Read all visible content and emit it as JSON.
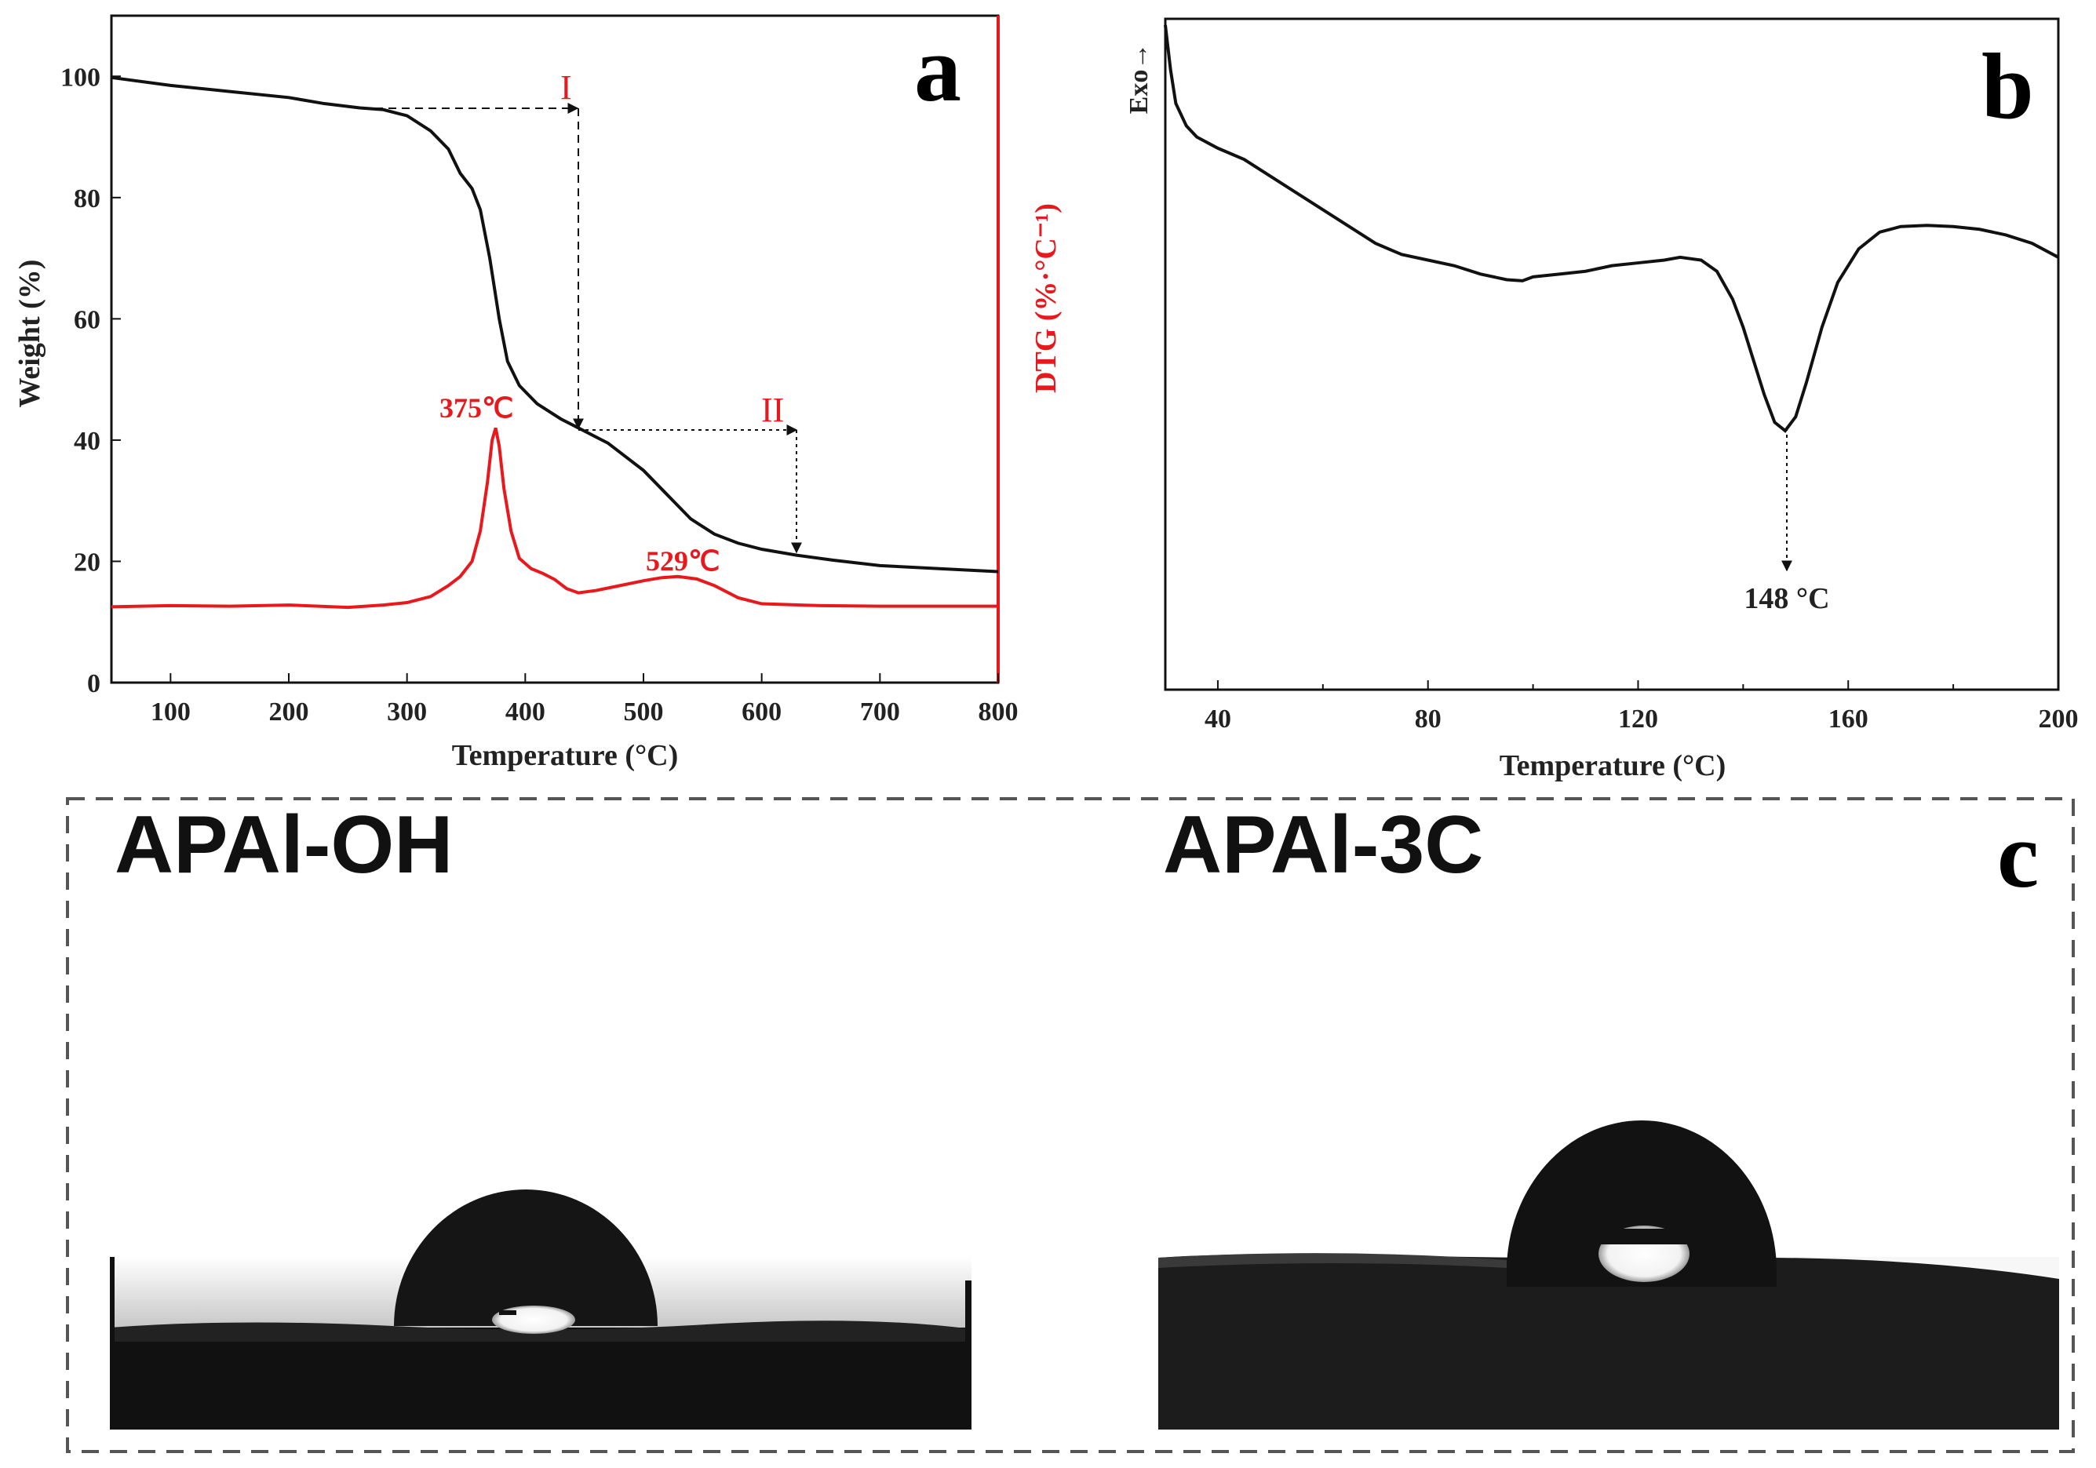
{
  "colors": {
    "tga": "#111111",
    "dtg": "#e8181c",
    "dsc": "#111111",
    "frame": "#555555"
  },
  "panel_a": {
    "letter": "a",
    "xlabel": "Temperature (°C)",
    "ylabel_left": "Weight (%)",
    "ylabel_right": "DTG (%·°C⁻¹)",
    "stage_labels": [
      "I",
      "II"
    ],
    "peak_labels": [
      "375℃",
      "529℃"
    ]
  },
  "panel_b": {
    "letter": "b",
    "xlabel": "Temperature (°C)",
    "ylabel": "Exo→",
    "peak_label": "148 °C"
  },
  "panel_c": {
    "letter": "c",
    "samples": [
      "APAl-OH",
      "APAl-3C"
    ]
  },
  "chart_data": [
    {
      "type": "line",
      "panel": "a",
      "xlabel": "Temperature (°C)",
      "ylabel": "Weight (%)",
      "y2label": "DTG (%·°C⁻¹)",
      "xlim": [
        50,
        800
      ],
      "ylim": [
        0,
        110
      ],
      "xticks": [
        100,
        200,
        300,
        400,
        500,
        600,
        700,
        800
      ],
      "yticks": [
        0,
        20,
        40,
        60,
        80,
        100
      ],
      "grid": false,
      "series": [
        {
          "axis": "left",
          "x": [
            50,
            100,
            150,
            200,
            230,
            260,
            280,
            300,
            320,
            335,
            345,
            355,
            362,
            370,
            378,
            385,
            395,
            410,
            430,
            445,
            470,
            500,
            520,
            540,
            560,
            580,
            600,
            630,
            660,
            700,
            750,
            800
          ],
          "y": [
            99.8,
            98.5,
            97.5,
            96.5,
            95.5,
            94.8,
            94.5,
            93.5,
            91,
            88,
            84,
            81.5,
            78,
            70,
            60,
            53,
            49,
            46,
            43.5,
            42,
            39.5,
            35,
            31,
            27,
            24.5,
            23,
            22,
            21,
            20.2,
            19.3,
            18.8,
            18.3
          ]
        },
        {
          "axis": "right",
          "x": [
            50,
            100,
            150,
            200,
            250,
            280,
            300,
            320,
            335,
            345,
            355,
            362,
            368,
            372,
            375,
            378,
            382,
            388,
            395,
            405,
            415,
            425,
            435,
            445,
            460,
            480,
            500,
            515,
            529,
            545,
            560,
            580,
            600,
            650,
            700,
            800
          ],
          "y": [
            12.5,
            12.7,
            12.6,
            12.8,
            12.4,
            12.8,
            13.2,
            14.2,
            16,
            17.5,
            20,
            25,
            33,
            40,
            42,
            39,
            32,
            25,
            20.5,
            18.8,
            18,
            17,
            15.5,
            14.8,
            15.2,
            16,
            16.8,
            17.3,
            17.5,
            17.1,
            16,
            14,
            13,
            12.7,
            12.6,
            12.6
          ]
        }
      ]
    },
    {
      "type": "line",
      "panel": "b",
      "xlabel": "Temperature (°C)",
      "ylabel": "Exo→",
      "xlim": [
        30,
        200
      ],
      "xticks": [
        40,
        80,
        120,
        160,
        200
      ],
      "grid": false,
      "series": [
        {
          "x": [
            30,
            31,
            32,
            34,
            36,
            40,
            45,
            50,
            55,
            60,
            65,
            70,
            75,
            80,
            85,
            90,
            95,
            98,
            100,
            105,
            110,
            115,
            120,
            125,
            128,
            132,
            135,
            138,
            140,
            142,
            144,
            146,
            148,
            150,
            152,
            155,
            158,
            162,
            166,
            170,
            175,
            180,
            185,
            190,
            195,
            200
          ],
          "y": [
            100,
            92,
            86,
            82,
            80,
            78,
            76,
            73,
            70,
            67,
            64,
            61,
            59,
            58,
            57,
            55.5,
            54.5,
            54.3,
            55,
            55.5,
            56,
            57,
            57.5,
            58,
            58.5,
            58,
            56,
            51,
            46,
            40,
            34,
            29,
            27.5,
            30,
            36,
            46,
            54,
            60,
            63,
            64,
            64.2,
            64,
            63.5,
            62.5,
            61,
            58.5
          ]
        }
      ]
    }
  ]
}
